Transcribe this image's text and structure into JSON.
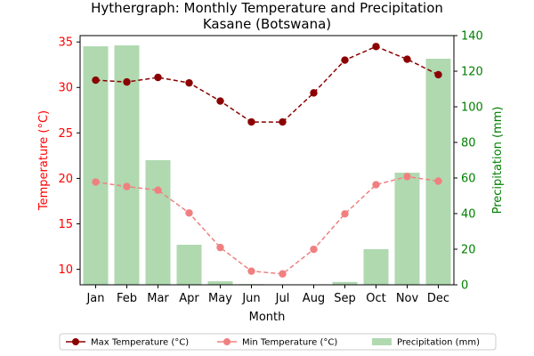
{
  "chart_data": {
    "type": "bar+line",
    "title": "Hythergraph: Monthly Temperature and Precipitation",
    "subtitle": "Kasane (Botswana)",
    "xlabel": "Month",
    "ylabel_left": "Temperature (°C)",
    "ylabel_right": "Precipitation (mm)",
    "categories": [
      "Jan",
      "Feb",
      "Mar",
      "Apr",
      "May",
      "Jun",
      "Jul",
      "Aug",
      "Sep",
      "Oct",
      "Nov",
      "Dec"
    ],
    "ylim_left": [
      8.3,
      35.7
    ],
    "ylim_right": [
      0,
      140
    ],
    "yticks_left": [
      "10",
      "15",
      "20",
      "25",
      "30",
      "35"
    ],
    "yticks_right": [
      "0",
      "20",
      "40",
      "60",
      "80",
      "100",
      "120",
      "140"
    ],
    "series": [
      {
        "name": "Max Temperature (°C)",
        "axis": "left",
        "kind": "line",
        "color": "#8b0000",
        "values": [
          30.8,
          30.6,
          31.1,
          30.5,
          28.5,
          26.2,
          26.2,
          29.4,
          33.0,
          34.5,
          33.1,
          31.4
        ]
      },
      {
        "name": "Min Temperature (°C)",
        "axis": "left",
        "kind": "line",
        "color": "#f08080",
        "values": [
          19.6,
          19.1,
          18.7,
          16.2,
          12.4,
          9.8,
          9.5,
          12.2,
          16.1,
          19.3,
          20.2,
          19.7
        ]
      },
      {
        "name": "Precipitation (mm)",
        "axis": "right",
        "kind": "bar",
        "color": "#8fc98f",
        "values": [
          134,
          134.5,
          70,
          22.5,
          2,
          0.4,
          0,
          0,
          1.6,
          20,
          63,
          127
        ]
      }
    ],
    "legend_position": "bottom"
  }
}
